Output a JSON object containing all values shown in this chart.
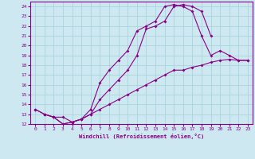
{
  "xlabel": "Windchill (Refroidissement éolien,°C)",
  "bg_color": "#cde8f0",
  "line_color": "#880088",
  "grid_color": "#aad4dc",
  "xlim": [
    -0.5,
    23.5
  ],
  "ylim": [
    12,
    24.5
  ],
  "yticks": [
    12,
    13,
    14,
    15,
    16,
    17,
    18,
    19,
    20,
    21,
    22,
    23,
    24
  ],
  "xticks": [
    0,
    1,
    2,
    3,
    4,
    5,
    6,
    7,
    8,
    9,
    10,
    11,
    12,
    13,
    14,
    15,
    16,
    17,
    18,
    19,
    20,
    21,
    22,
    23
  ],
  "line1_x": [
    0,
    1,
    2,
    3,
    4,
    5,
    6,
    7,
    8,
    9,
    10,
    11,
    12,
    13,
    14,
    15,
    16,
    17,
    18,
    19,
    20,
    21,
    22,
    23
  ],
  "line1_y": [
    13.5,
    13.0,
    12.7,
    12.7,
    12.2,
    12.5,
    13.0,
    13.5,
    14.0,
    14.5,
    15.0,
    15.5,
    16.0,
    16.5,
    17.0,
    17.5,
    17.5,
    17.8,
    18.0,
    18.3,
    18.5,
    18.6,
    18.5,
    18.5
  ],
  "line2_x": [
    0,
    1,
    2,
    3,
    4,
    5,
    6,
    7,
    8,
    9,
    10,
    11,
    12,
    13,
    14,
    15,
    16,
    17,
    18,
    19,
    20,
    21,
    22,
    23
  ],
  "line2_y": [
    13.5,
    13.0,
    12.7,
    12.0,
    12.2,
    12.5,
    13.0,
    14.5,
    15.5,
    16.5,
    17.5,
    19.0,
    21.7,
    22.0,
    22.5,
    24.0,
    24.2,
    24.0,
    23.5,
    21.0,
    null,
    null,
    null,
    null
  ],
  "line3_x": [
    1,
    2,
    3,
    4,
    5,
    6,
    7,
    8,
    9,
    10,
    11,
    12,
    13,
    14,
    15,
    16,
    17,
    18,
    19,
    20,
    21,
    22,
    23
  ],
  "line3_y": [
    13.0,
    12.7,
    12.0,
    12.2,
    12.5,
    13.5,
    16.2,
    17.5,
    18.5,
    19.5,
    21.5,
    22.0,
    22.5,
    24.0,
    24.2,
    24.0,
    23.5,
    21.0,
    19.0,
    19.5,
    19.0,
    18.5,
    18.5
  ]
}
